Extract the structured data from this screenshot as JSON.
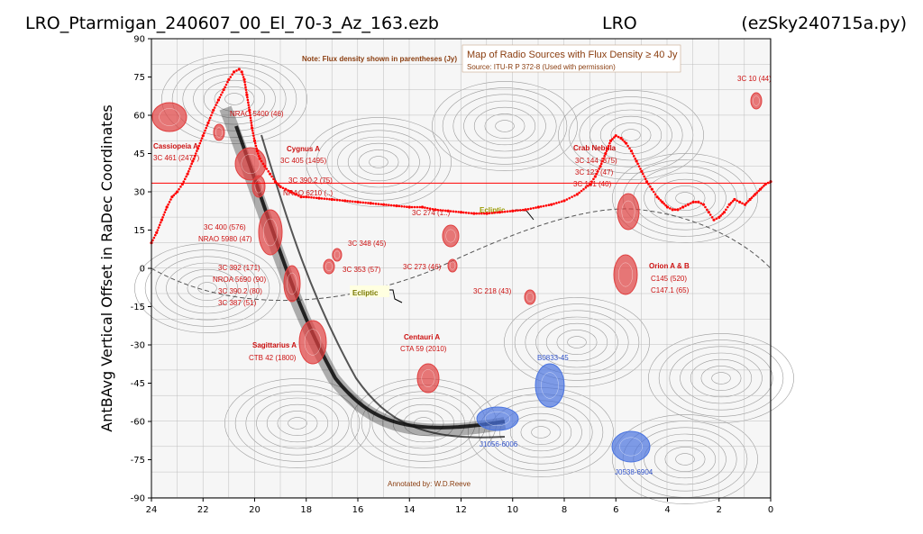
{
  "figure": {
    "title_left": "LRO_Ptarmigan_240607_00_El_70-3_Az_163.ezb",
    "title_center": "LRO",
    "title_right": "(ezSky240715a.py)"
  },
  "chart_data": {
    "type": "line",
    "title": "",
    "xlabel": "",
    "ylabel": "AntBAvg Vertical Offset in RaDec Coordinates",
    "xlim": [
      24,
      0
    ],
    "ylim": [
      -90,
      90
    ],
    "xticks": [
      24,
      22,
      20,
      18,
      16,
      14,
      12,
      10,
      8,
      6,
      4,
      2,
      0
    ],
    "yticks": [
      90,
      75,
      60,
      45,
      30,
      15,
      0,
      -15,
      -30,
      -45,
      -60,
      -75,
      -90
    ],
    "grid": false,
    "colors": {
      "trace": "#ff0000",
      "red_source": "#e04040",
      "blue_source": "#4a74e0",
      "annotation_red": "#cc1111",
      "annotation_blue": "#3355cc",
      "annotation_brown": "#8a3d0f"
    },
    "reference_line": {
      "y": 33.4,
      "color": "#ff0000"
    },
    "series": [
      {
        "values_x": [
          24.0,
          23.8,
          23.6,
          23.4,
          23.2,
          23.0,
          22.8,
          22.6,
          22.4,
          22.2,
          22.0,
          21.8,
          21.6,
          21.4,
          21.2,
          21.0,
          20.8,
          20.6,
          20.5,
          20.4,
          20.3,
          20.2,
          20.1,
          20.0,
          19.9,
          19.8,
          19.6,
          19.4,
          19.2,
          19.0,
          18.8,
          18.6,
          18.4,
          18.2,
          18.0,
          17.5,
          17.0,
          16.5,
          16.0,
          15.5,
          15.0,
          14.5,
          14.0,
          13.5,
          13.0,
          12.5,
          12.0,
          11.5,
          11.0,
          10.5,
          10.0,
          9.5,
          9.0,
          8.5,
          8.0,
          7.5,
          7.0,
          6.8,
          6.6,
          6.4,
          6.2,
          6.0,
          5.8,
          5.6,
          5.4,
          5.2,
          5.0,
          4.8,
          4.6,
          4.4,
          4.2,
          4.0,
          3.8,
          3.6,
          3.4,
          3.2,
          3.0,
          2.8,
          2.6,
          2.4,
          2.2,
          2.0,
          1.8,
          1.6,
          1.4,
          1.2,
          1.0,
          0.8,
          0.6,
          0.4,
          0.2,
          0.0
        ],
        "values_y": [
          10,
          14,
          19,
          24,
          28,
          30,
          33,
          37,
          42,
          47,
          52,
          57,
          62,
          66,
          70,
          74,
          77,
          78,
          77,
          74,
          68,
          62,
          55,
          50,
          46,
          43,
          40,
          37,
          34,
          32,
          31,
          30,
          29,
          28,
          28,
          27.5,
          27,
          26.5,
          26,
          25.5,
          25,
          24.5,
          24,
          24,
          23,
          22.5,
          22,
          21.5,
          21.5,
          22,
          22.5,
          23,
          24,
          25,
          26.5,
          29,
          33,
          36,
          40,
          45,
          50,
          52,
          51,
          49,
          46,
          42,
          38,
          34,
          31,
          28,
          26,
          24,
          23,
          23,
          24,
          25,
          26,
          26,
          25,
          22,
          19,
          20,
          22,
          25,
          27,
          26,
          25,
          27,
          29,
          31,
          33,
          34
        ]
      }
    ]
  },
  "annotations": {
    "note": "Note: Flux density shown in parentheses (Jy)",
    "map_title": "Map of Radio Sources with Flux Density ≥ 40 Jy",
    "map_source": "Source: ITU-R P 372-8 (Used with permission)",
    "annotated_by": "Annotated by: W.D.Reeve",
    "ecliptic_1": "Ecliptic",
    "ecliptic_2": "Ecliptic",
    "cassiopeia_1": "Cassiopeia A",
    "cassiopeia_2": "3C 461 (2477)",
    "nrao_5400": "NRAO 5400 (46)",
    "cygnus_1": "Cygnus A",
    "cygnus_2": "3C 405 (1495)",
    "cygnus_3": "3C 390.2 (75)",
    "cygnus_4": "NRAO 6210 (..)",
    "c3_400": "3C 400 (576)",
    "nrao_5980": "NRAO 5980 (47)",
    "c3_392": "3C 392 (171)",
    "nroa_5690": "NROA 5690 (90)",
    "c3_390": "3C 390.2 (80)",
    "c3_387": "3C 387 (51)",
    "c3_348": "3C 348 (45)",
    "c3_353": "3C 353 (57)",
    "c3_273": "3C 273 (46)",
    "c3_274": "3C 274 (1..)",
    "c3_218": "3C 218 (43)",
    "sag_1": "Sagittarius A",
    "sag_2": "CTB 42 (1800)",
    "cen_1": "Centauri A",
    "cen_2": "CTA 59 (2010)",
    "crab_1": "Crab Nebula",
    "crab_2": "3C 144 (875)",
    "crab_3": "3C 123 (47)",
    "crab_4": "3C 161 (40)",
    "orion_1": "Orion A & B",
    "orion_2": "C145 (520)",
    "orion_3": "C147.1 (65)",
    "c3_10": "3C 10 (44)",
    "b0833": "B0833-45",
    "j1056": "J1056-6006",
    "j0538": "J0538-6904"
  }
}
